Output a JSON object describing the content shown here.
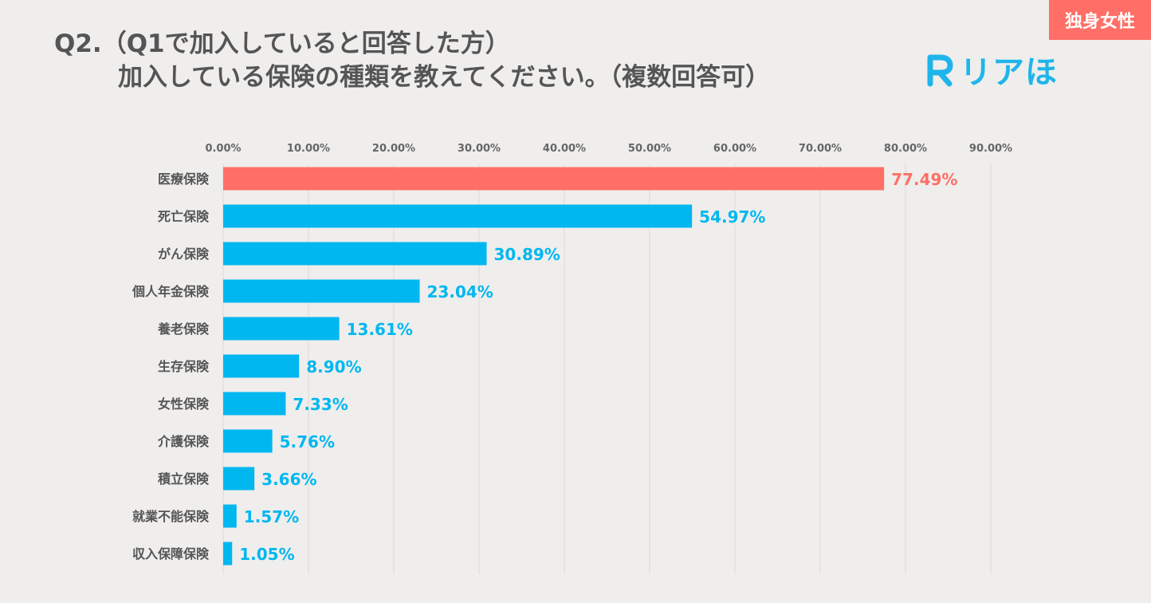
{
  "corner_tag": {
    "label": "独身女性",
    "color": "#ff6f67"
  },
  "header": {
    "title_line1": "Q2.（Q1で加入していると回答した方）",
    "title_line2": "加入している保険の種類を教えてください。（複数回答可）"
  },
  "logo": {
    "mark": "R",
    "text": "リアほ",
    "color": "#1fb5ea"
  },
  "colors": {
    "highlight": "#ff6f67",
    "bar": "#00b7f0",
    "grid": "#e2e1df"
  },
  "chart_data": {
    "type": "bar",
    "orientation": "horizontal",
    "categories": [
      "医療保険",
      "死亡保険",
      "がん保険",
      "個人年金保険",
      "養老保険",
      "生存保険",
      "女性保険",
      "介護保険",
      "積立保険",
      "就業不能保険",
      "収入保障保険"
    ],
    "values": [
      77.49,
      54.97,
      30.89,
      23.04,
      13.61,
      8.9,
      7.33,
      5.76,
      3.66,
      1.57,
      1.05
    ],
    "value_labels": [
      "77.49%",
      "54.97%",
      "30.89%",
      "23.04%",
      "13.61%",
      "8.90%",
      "7.33%",
      "5.76%",
      "3.66%",
      "1.57%",
      "1.05%"
    ],
    "highlight_index": 0,
    "xlim": [
      0,
      90
    ],
    "x_ticks": [
      0,
      10,
      20,
      30,
      40,
      50,
      60,
      70,
      80,
      90
    ],
    "x_tick_labels": [
      "0.00%",
      "10.00%",
      "20.00%",
      "30.00%",
      "40.00%",
      "50.00%",
      "60.00%",
      "70.00%",
      "80.00%",
      "90.00%"
    ],
    "axis_position": "top",
    "grid": true
  }
}
